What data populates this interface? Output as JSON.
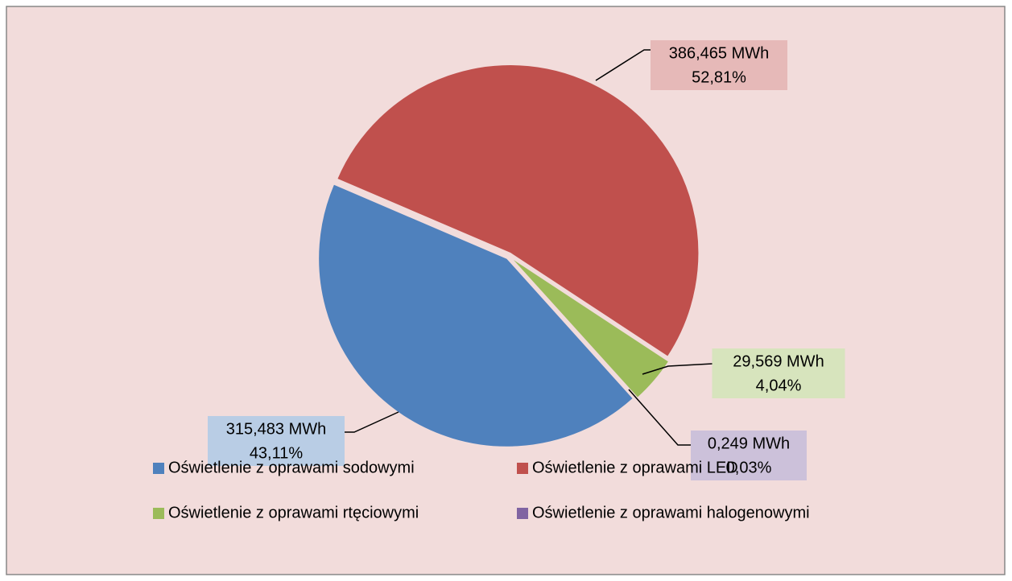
{
  "chart_data": {
    "type": "pie",
    "categories": [
      "Oświetlenie z oprawami sodowymi",
      "Oświetlenie z oprawami LED",
      "Oświetlenie z oprawami rtęciowymi",
      "Oświetlenie z oprawami halogenowymi"
    ],
    "values": [
      315.483,
      386.465,
      29.569,
      0.249
    ],
    "value_labels": [
      "315,483 MWh",
      "386,465 MWh",
      "29,569 MWh",
      "0,249 MWh"
    ],
    "percentages": [
      43.11,
      52.81,
      4.04,
      0.03
    ],
    "percentage_labels": [
      "43,11%",
      "52,81%",
      "4,04%",
      "0,03%"
    ],
    "colors": [
      "#4f81bd",
      "#c0504d",
      "#9bbb59",
      "#8064a2"
    ],
    "legend": "bottom"
  }
}
